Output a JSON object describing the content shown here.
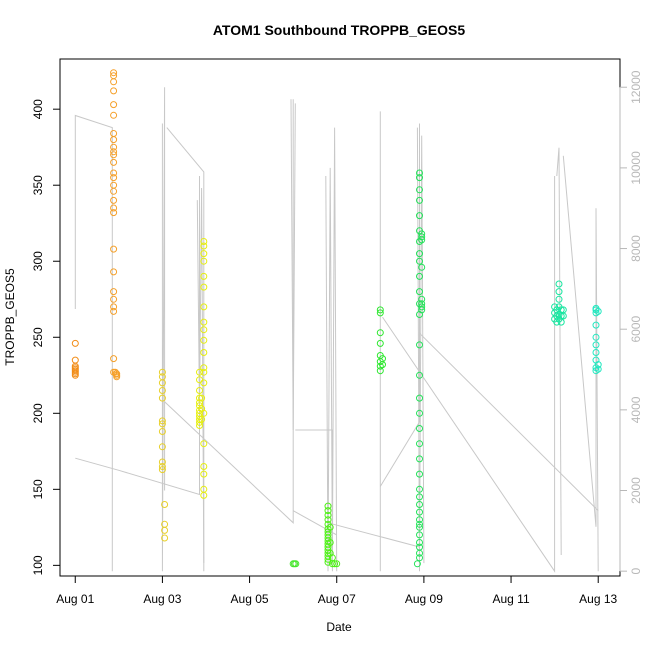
{
  "chart_data": {
    "type": "scatter",
    "title": "ATOM1 Southbound TROPPB_GEOS5",
    "xlabel": "Date",
    "ylabel": "TROPPB_GEOS5",
    "x_tick_labels": [
      "Aug 01",
      "Aug 03",
      "Aug 05",
      "Aug 07",
      "Aug 09",
      "Aug 11",
      "Aug 13"
    ],
    "x_tick_days": [
      1,
      3,
      5,
      7,
      9,
      11,
      13
    ],
    "xlim_days": [
      0.65,
      13.5
    ],
    "ylim": [
      93,
      433
    ],
    "y_ticks": [
      100,
      150,
      200,
      250,
      300,
      350,
      400
    ],
    "y2lim": [
      -120,
      12700
    ],
    "y2_ticks": [
      0,
      2000,
      4000,
      6000,
      8000,
      10000,
      12000
    ],
    "grid": false,
    "secondary_series": {
      "kind": "line",
      "color": "#c8c8c8",
      "segments": [
        [
          [
            1.0,
            6500
          ],
          [
            1.0,
            11300
          ],
          [
            1.85,
            11000
          ],
          [
            1.85,
            0
          ]
        ],
        [
          [
            1.0,
            2800
          ],
          [
            2.0,
            2500
          ],
          [
            3.85,
            1900
          ],
          [
            3.85,
            9800
          ]
        ],
        [
          [
            3.0,
            11100
          ],
          [
            3.0,
            0
          ],
          [
            3.05,
            12000
          ],
          [
            3.05,
            2000
          ]
        ],
        [
          [
            3.1,
            11000
          ],
          [
            3.95,
            9900
          ],
          [
            3.95,
            0
          ]
        ],
        [
          [
            3.8,
            9200
          ],
          [
            3.85,
            4000
          ],
          [
            3.9,
            9500
          ],
          [
            3.95,
            200
          ]
        ],
        [
          [
            3.05,
            4200
          ],
          [
            6.0,
            1200
          ],
          [
            6.0,
            11700
          ]
        ],
        [
          [
            5.95,
            11700
          ],
          [
            6.0,
            3500
          ],
          [
            6.05,
            11600
          ]
        ],
        [
          [
            6.05,
            3500
          ],
          [
            6.9,
            3500
          ],
          [
            6.9,
            0
          ]
        ],
        [
          [
            6.0,
            1500
          ],
          [
            7.0,
            900
          ]
        ],
        [
          [
            6.75,
            9800
          ],
          [
            6.8,
            0
          ],
          [
            6.85,
            10000
          ],
          [
            6.9,
            400
          ],
          [
            6.95,
            11000
          ],
          [
            7.0,
            0
          ]
        ],
        [
          [
            6.8,
            1200
          ],
          [
            8.9,
            600
          ]
        ],
        [
          [
            8.0,
            11400
          ],
          [
            8.0,
            0
          ]
        ],
        [
          [
            8.0,
            2100
          ],
          [
            8.9,
            3700
          ],
          [
            8.9,
            11100
          ]
        ],
        [
          [
            8.05,
            6300
          ],
          [
            12.0,
            0
          ],
          [
            12.0,
            9800
          ]
        ],
        [
          [
            8.85,
            11000
          ],
          [
            8.9,
            0
          ],
          [
            8.95,
            10800
          ],
          [
            9.0,
            200
          ]
        ],
        [
          [
            12.05,
            9800
          ],
          [
            12.1,
            10500
          ],
          [
            12.15,
            400
          ]
        ],
        [
          [
            12.2,
            10300
          ],
          [
            12.95,
            1100
          ],
          [
            12.95,
            9000
          ],
          [
            13.0,
            0
          ]
        ],
        [
          [
            8.9,
            5900
          ],
          [
            13.0,
            1500
          ]
        ]
      ]
    },
    "series": [
      {
        "color": "#f28c16",
        "points": [
          [
            1.0,
            246
          ],
          [
            1.0,
            235
          ],
          [
            1.0,
            226
          ],
          [
            1.0,
            228
          ],
          [
            1.0,
            230
          ],
          [
            1.0,
            227
          ],
          [
            1.0,
            229
          ],
          [
            1.0,
            225
          ],
          [
            1.0,
            231
          ]
        ]
      },
      {
        "color": "#f5a02a",
        "points": [
          [
            1.88,
            424
          ],
          [
            1.88,
            422
          ],
          [
            1.88,
            418
          ],
          [
            1.88,
            412
          ],
          [
            1.88,
            403
          ],
          [
            1.88,
            396
          ],
          [
            1.88,
            384
          ],
          [
            1.88,
            380
          ],
          [
            1.88,
            375
          ],
          [
            1.88,
            372
          ],
          [
            1.88,
            370
          ],
          [
            1.88,
            365
          ],
          [
            1.88,
            358
          ],
          [
            1.88,
            355
          ],
          [
            1.88,
            350
          ],
          [
            1.88,
            346
          ],
          [
            1.88,
            340
          ],
          [
            1.88,
            335
          ],
          [
            1.88,
            332
          ],
          [
            1.88,
            308
          ],
          [
            1.88,
            293
          ],
          [
            1.88,
            280
          ],
          [
            1.88,
            275
          ],
          [
            1.88,
            270
          ],
          [
            1.88,
            267
          ],
          [
            1.88,
            236
          ],
          [
            1.88,
            227
          ],
          [
            1.95,
            226
          ],
          [
            1.95,
            225
          ],
          [
            1.95,
            224
          ],
          [
            1.92,
            227
          ],
          [
            1.93,
            226
          ]
        ]
      },
      {
        "color": "#e8d02a",
        "points": [
          [
            3.0,
            227
          ],
          [
            3.0,
            224
          ],
          [
            3.0,
            220
          ],
          [
            3.0,
            215
          ],
          [
            3.0,
            210
          ],
          [
            3.0,
            195
          ],
          [
            3.0,
            193
          ],
          [
            3.0,
            188
          ],
          [
            3.0,
            178
          ],
          [
            3.0,
            168
          ],
          [
            3.0,
            165
          ],
          [
            3.0,
            163
          ],
          [
            3.05,
            140
          ],
          [
            3.05,
            127
          ],
          [
            3.05,
            123
          ],
          [
            3.05,
            118
          ]
        ]
      },
      {
        "color": "#e6ee10",
        "points": [
          [
            3.85,
            227
          ],
          [
            3.85,
            222
          ],
          [
            3.85,
            215
          ],
          [
            3.85,
            210
          ],
          [
            3.85,
            207
          ],
          [
            3.85,
            205
          ],
          [
            3.85,
            202
          ],
          [
            3.85,
            200
          ],
          [
            3.85,
            198
          ],
          [
            3.85,
            196
          ],
          [
            3.85,
            194
          ],
          [
            3.85,
            192
          ],
          [
            3.9,
            210
          ],
          [
            3.9,
            203
          ],
          [
            3.9,
            196
          ],
          [
            3.95,
            313
          ],
          [
            3.95,
            310
          ],
          [
            3.95,
            305
          ],
          [
            3.95,
            300
          ],
          [
            3.95,
            290
          ],
          [
            3.95,
            283
          ],
          [
            3.95,
            270
          ],
          [
            3.95,
            260
          ],
          [
            3.95,
            255
          ],
          [
            3.95,
            248
          ],
          [
            3.95,
            240
          ],
          [
            3.95,
            230
          ],
          [
            3.95,
            227
          ],
          [
            3.95,
            220
          ],
          [
            3.95,
            200
          ],
          [
            3.95,
            180
          ],
          [
            3.95,
            165
          ],
          [
            3.95,
            160
          ],
          [
            3.95,
            150
          ],
          [
            3.95,
            146
          ]
        ]
      },
      {
        "color": "#44e62a",
        "points": [
          [
            6.0,
            101
          ],
          [
            6.03,
            101
          ],
          [
            6.06,
            101
          ]
        ]
      },
      {
        "color": "#4ef016",
        "points": [
          [
            6.8,
            139
          ],
          [
            6.8,
            136
          ],
          [
            6.8,
            133
          ],
          [
            6.8,
            130
          ],
          [
            6.8,
            127
          ],
          [
            6.8,
            124
          ],
          [
            6.8,
            122
          ],
          [
            6.8,
            120
          ],
          [
            6.8,
            118
          ],
          [
            6.8,
            116
          ],
          [
            6.8,
            114
          ],
          [
            6.8,
            112
          ],
          [
            6.8,
            110
          ],
          [
            6.8,
            108
          ],
          [
            6.8,
            106
          ],
          [
            6.8,
            104
          ],
          [
            6.8,
            102
          ],
          [
            6.85,
            125
          ],
          [
            6.85,
            115
          ],
          [
            6.85,
            108
          ],
          [
            6.9,
            105
          ],
          [
            6.9,
            101
          ],
          [
            6.95,
            101
          ],
          [
            7.0,
            101
          ]
        ]
      },
      {
        "color": "#2ee830",
        "points": [
          [
            8.0,
            268
          ],
          [
            8.0,
            266
          ],
          [
            8.0,
            253
          ],
          [
            8.0,
            246
          ],
          [
            8.0,
            238
          ],
          [
            8.0,
            234
          ],
          [
            8.0,
            231
          ],
          [
            8.0,
            228
          ],
          [
            8.05,
            236
          ],
          [
            8.05,
            232
          ]
        ]
      },
      {
        "color": "#24e25a",
        "points": [
          [
            8.9,
            358
          ],
          [
            8.9,
            355
          ],
          [
            8.9,
            347
          ],
          [
            8.9,
            340
          ],
          [
            8.9,
            330
          ],
          [
            8.9,
            320
          ],
          [
            8.9,
            313
          ],
          [
            8.9,
            305
          ],
          [
            8.9,
            300
          ],
          [
            8.9,
            290
          ],
          [
            8.9,
            280
          ],
          [
            8.9,
            272
          ],
          [
            8.9,
            265
          ],
          [
            8.9,
            245
          ],
          [
            8.9,
            225
          ],
          [
            8.9,
            210
          ],
          [
            8.9,
            200
          ],
          [
            8.9,
            190
          ],
          [
            8.9,
            180
          ],
          [
            8.9,
            170
          ],
          [
            8.9,
            160
          ],
          [
            8.9,
            150
          ],
          [
            8.9,
            145
          ],
          [
            8.9,
            140
          ],
          [
            8.9,
            135
          ],
          [
            8.9,
            130
          ],
          [
            8.9,
            127
          ],
          [
            8.9,
            125
          ],
          [
            8.9,
            120
          ],
          [
            8.9,
            115
          ],
          [
            8.9,
            112
          ],
          [
            8.9,
            108
          ],
          [
            8.9,
            105
          ],
          [
            8.85,
            101
          ],
          [
            8.95,
            318
          ],
          [
            8.95,
            316
          ],
          [
            8.95,
            314
          ],
          [
            8.95,
            296
          ],
          [
            8.95,
            275
          ],
          [
            8.95,
            272
          ],
          [
            8.95,
            270
          ],
          [
            8.95,
            268
          ]
        ]
      },
      {
        "color": "#18e6a0",
        "points": [
          [
            12.0,
            270
          ],
          [
            12.0,
            266
          ],
          [
            12.0,
            262
          ],
          [
            12.05,
            268
          ],
          [
            12.05,
            264
          ],
          [
            12.05,
            260
          ],
          [
            12.1,
            285
          ],
          [
            12.1,
            280
          ],
          [
            12.1,
            275
          ],
          [
            12.1,
            270
          ],
          [
            12.1,
            265
          ],
          [
            12.1,
            262
          ],
          [
            12.15,
            268
          ],
          [
            12.15,
            264
          ],
          [
            12.15,
            260
          ],
          [
            12.2,
            268
          ],
          [
            12.2,
            264
          ]
        ]
      },
      {
        "color": "#22e8c0",
        "points": [
          [
            12.95,
            269
          ],
          [
            12.95,
            268
          ],
          [
            12.95,
            266
          ],
          [
            12.95,
            258
          ],
          [
            12.95,
            250
          ],
          [
            12.95,
            245
          ],
          [
            12.95,
            240
          ],
          [
            12.95,
            235
          ],
          [
            12.95,
            230
          ],
          [
            12.95,
            228
          ],
          [
            13.0,
            267
          ],
          [
            13.0,
            232
          ],
          [
            13.0,
            229
          ]
        ]
      }
    ]
  }
}
